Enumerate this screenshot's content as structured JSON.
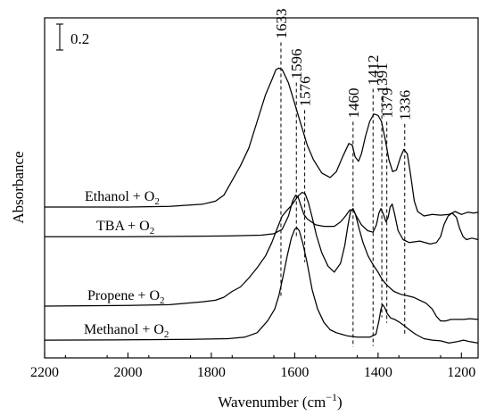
{
  "chart_data": {
    "type": "line",
    "xlabel_main": "Wavenumber (cm",
    "xlabel_sup": "−1",
    "xlabel_end": ")",
    "ylabel": "Absorbance",
    "xlim": [
      2200,
      1160
    ],
    "x_reversed": true,
    "x_ticks": [
      2200,
      2000,
      1800,
      1600,
      1400,
      1200
    ],
    "x_tick_labels": [
      "2200",
      "2000",
      "1800",
      "1600",
      "1400",
      "1200"
    ],
    "scale_bar_value": 0.2,
    "scale_bar_label": "0.2",
    "peak_lines": [
      {
        "label": "1633",
        "x": 1633
      },
      {
        "label": "1596",
        "x": 1596
      },
      {
        "label": "1576",
        "x": 1576
      },
      {
        "label": "1460",
        "x": 1460
      },
      {
        "label": "1412",
        "x": 1412
      },
      {
        "label": "1391",
        "x": 1391
      },
      {
        "label": "1379",
        "x": 1379
      },
      {
        "label": "1336",
        "x": 1336
      }
    ],
    "series": [
      {
        "name": "Ethanol + O",
        "name_sub": "2",
        "baseline": 1.62,
        "points": [
          [
            2200,
            1.62
          ],
          [
            2000,
            1.62
          ],
          [
            1900,
            1.625
          ],
          [
            1820,
            1.64
          ],
          [
            1790,
            1.66
          ],
          [
            1770,
            1.7
          ],
          [
            1750,
            1.8
          ],
          [
            1730,
            1.9
          ],
          [
            1710,
            2.02
          ],
          [
            1690,
            2.2
          ],
          [
            1670,
            2.38
          ],
          [
            1655,
            2.48
          ],
          [
            1645,
            2.55
          ],
          [
            1638,
            2.56
          ],
          [
            1630,
            2.55
          ],
          [
            1615,
            2.46
          ],
          [
            1600,
            2.32
          ],
          [
            1585,
            2.18
          ],
          [
            1570,
            2.04
          ],
          [
            1555,
            1.94
          ],
          [
            1535,
            1.85
          ],
          [
            1515,
            1.82
          ],
          [
            1500,
            1.86
          ],
          [
            1485,
            1.96
          ],
          [
            1470,
            2.05
          ],
          [
            1462,
            2.04
          ],
          [
            1455,
            1.96
          ],
          [
            1447,
            1.93
          ],
          [
            1440,
            1.98
          ],
          [
            1430,
            2.1
          ],
          [
            1420,
            2.2
          ],
          [
            1410,
            2.25
          ],
          [
            1400,
            2.24
          ],
          [
            1392,
            2.2
          ],
          [
            1383,
            2.08
          ],
          [
            1374,
            1.94
          ],
          [
            1365,
            1.86
          ],
          [
            1356,
            1.87
          ],
          [
            1346,
            1.96
          ],
          [
            1338,
            2.01
          ],
          [
            1330,
            1.98
          ],
          [
            1322,
            1.84
          ],
          [
            1313,
            1.66
          ],
          [
            1305,
            1.59
          ],
          [
            1290,
            1.56
          ],
          [
            1270,
            1.57
          ],
          [
            1250,
            1.565
          ],
          [
            1230,
            1.57
          ],
          [
            1215,
            1.59
          ],
          [
            1200,
            1.57
          ],
          [
            1185,
            1.585
          ],
          [
            1170,
            1.58
          ],
          [
            1160,
            1.585
          ]
        ]
      },
      {
        "name": "TBA + O",
        "name_sub": "2",
        "baseline": 1.42,
        "points": [
          [
            2200,
            1.42
          ],
          [
            2000,
            1.42
          ],
          [
            1850,
            1.422
          ],
          [
            1750,
            1.425
          ],
          [
            1680,
            1.43
          ],
          [
            1650,
            1.44
          ],
          [
            1630,
            1.47
          ],
          [
            1615,
            1.56
          ],
          [
            1605,
            1.66
          ],
          [
            1598,
            1.7
          ],
          [
            1592,
            1.69
          ],
          [
            1585,
            1.63
          ],
          [
            1578,
            1.57
          ],
          [
            1570,
            1.54
          ],
          [
            1550,
            1.5
          ],
          [
            1530,
            1.49
          ],
          [
            1505,
            1.49
          ],
          [
            1490,
            1.52
          ],
          [
            1478,
            1.56
          ],
          [
            1468,
            1.6
          ],
          [
            1460,
            1.6
          ],
          [
            1452,
            1.56
          ],
          [
            1440,
            1.5
          ],
          [
            1425,
            1.46
          ],
          [
            1412,
            1.45
          ],
          [
            1404,
            1.5
          ],
          [
            1398,
            1.58
          ],
          [
            1393,
            1.61
          ],
          [
            1387,
            1.57
          ],
          [
            1381,
            1.52
          ],
          [
            1376,
            1.55
          ],
          [
            1371,
            1.62
          ],
          [
            1366,
            1.64
          ],
          [
            1360,
            1.57
          ],
          [
            1352,
            1.46
          ],
          [
            1340,
            1.4
          ],
          [
            1325,
            1.38
          ],
          [
            1300,
            1.39
          ],
          [
            1275,
            1.37
          ],
          [
            1260,
            1.38
          ],
          [
            1250,
            1.42
          ],
          [
            1242,
            1.5
          ],
          [
            1232,
            1.56
          ],
          [
            1222,
            1.58
          ],
          [
            1212,
            1.55
          ],
          [
            1205,
            1.48
          ],
          [
            1196,
            1.42
          ],
          [
            1188,
            1.4
          ],
          [
            1175,
            1.41
          ],
          [
            1160,
            1.4
          ]
        ]
      },
      {
        "name": "Propene + O",
        "name_sub": "2",
        "baseline": 0.95,
        "points": [
          [
            2200,
            0.95
          ],
          [
            2000,
            0.955
          ],
          [
            1900,
            0.96
          ],
          [
            1820,
            0.98
          ],
          [
            1790,
            0.99
          ],
          [
            1770,
            1.01
          ],
          [
            1750,
            1.05
          ],
          [
            1730,
            1.08
          ],
          [
            1710,
            1.14
          ],
          [
            1690,
            1.21
          ],
          [
            1670,
            1.29
          ],
          [
            1655,
            1.38
          ],
          [
            1640,
            1.49
          ],
          [
            1630,
            1.56
          ],
          [
            1618,
            1.6
          ],
          [
            1608,
            1.63
          ],
          [
            1598,
            1.67
          ],
          [
            1590,
            1.7
          ],
          [
            1582,
            1.72
          ],
          [
            1575,
            1.71
          ],
          [
            1567,
            1.65
          ],
          [
            1558,
            1.55
          ],
          [
            1548,
            1.43
          ],
          [
            1535,
            1.31
          ],
          [
            1520,
            1.22
          ],
          [
            1505,
            1.18
          ],
          [
            1490,
            1.24
          ],
          [
            1480,
            1.36
          ],
          [
            1472,
            1.5
          ],
          [
            1466,
            1.59
          ],
          [
            1460,
            1.61
          ],
          [
            1454,
            1.57
          ],
          [
            1446,
            1.48
          ],
          [
            1436,
            1.38
          ],
          [
            1424,
            1.29
          ],
          [
            1412,
            1.23
          ],
          [
            1400,
            1.18
          ],
          [
            1390,
            1.13
          ],
          [
            1378,
            1.09
          ],
          [
            1362,
            1.05
          ],
          [
            1345,
            1.03
          ],
          [
            1330,
            1.02
          ],
          [
            1315,
            1.01
          ],
          [
            1300,
            0.99
          ],
          [
            1285,
            0.97
          ],
          [
            1270,
            0.93
          ],
          [
            1260,
            0.88
          ],
          [
            1250,
            0.85
          ],
          [
            1238,
            0.85
          ],
          [
            1225,
            0.86
          ],
          [
            1210,
            0.86
          ],
          [
            1195,
            0.86
          ],
          [
            1180,
            0.865
          ],
          [
            1160,
            0.86
          ]
        ]
      },
      {
        "name": "Methanol + O",
        "name_sub": "2",
        "baseline": 0.72,
        "points": [
          [
            2200,
            0.72
          ],
          [
            2000,
            0.722
          ],
          [
            1850,
            0.725
          ],
          [
            1760,
            0.73
          ],
          [
            1720,
            0.74
          ],
          [
            1690,
            0.77
          ],
          [
            1665,
            0.85
          ],
          [
            1648,
            0.93
          ],
          [
            1638,
            1.02
          ],
          [
            1628,
            1.15
          ],
          [
            1618,
            1.29
          ],
          [
            1608,
            1.41
          ],
          [
            1600,
            1.47
          ],
          [
            1595,
            1.48
          ],
          [
            1589,
            1.46
          ],
          [
            1580,
            1.37
          ],
          [
            1570,
            1.24
          ],
          [
            1558,
            1.06
          ],
          [
            1545,
            0.93
          ],
          [
            1530,
            0.84
          ],
          [
            1515,
            0.79
          ],
          [
            1500,
            0.77
          ],
          [
            1475,
            0.75
          ],
          [
            1450,
            0.74
          ],
          [
            1420,
            0.74
          ],
          [
            1405,
            0.76
          ],
          [
            1398,
            0.85
          ],
          [
            1393,
            0.93
          ],
          [
            1389,
            0.96
          ],
          [
            1384,
            0.94
          ],
          [
            1378,
            0.9
          ],
          [
            1370,
            0.87
          ],
          [
            1360,
            0.86
          ],
          [
            1348,
            0.84
          ],
          [
            1338,
            0.82
          ],
          [
            1325,
            0.79
          ],
          [
            1310,
            0.76
          ],
          [
            1290,
            0.73
          ],
          [
            1270,
            0.72
          ],
          [
            1250,
            0.715
          ],
          [
            1230,
            0.7
          ],
          [
            1210,
            0.71
          ],
          [
            1195,
            0.72
          ],
          [
            1180,
            0.71
          ],
          [
            1160,
            0.7
          ]
        ]
      }
    ]
  }
}
